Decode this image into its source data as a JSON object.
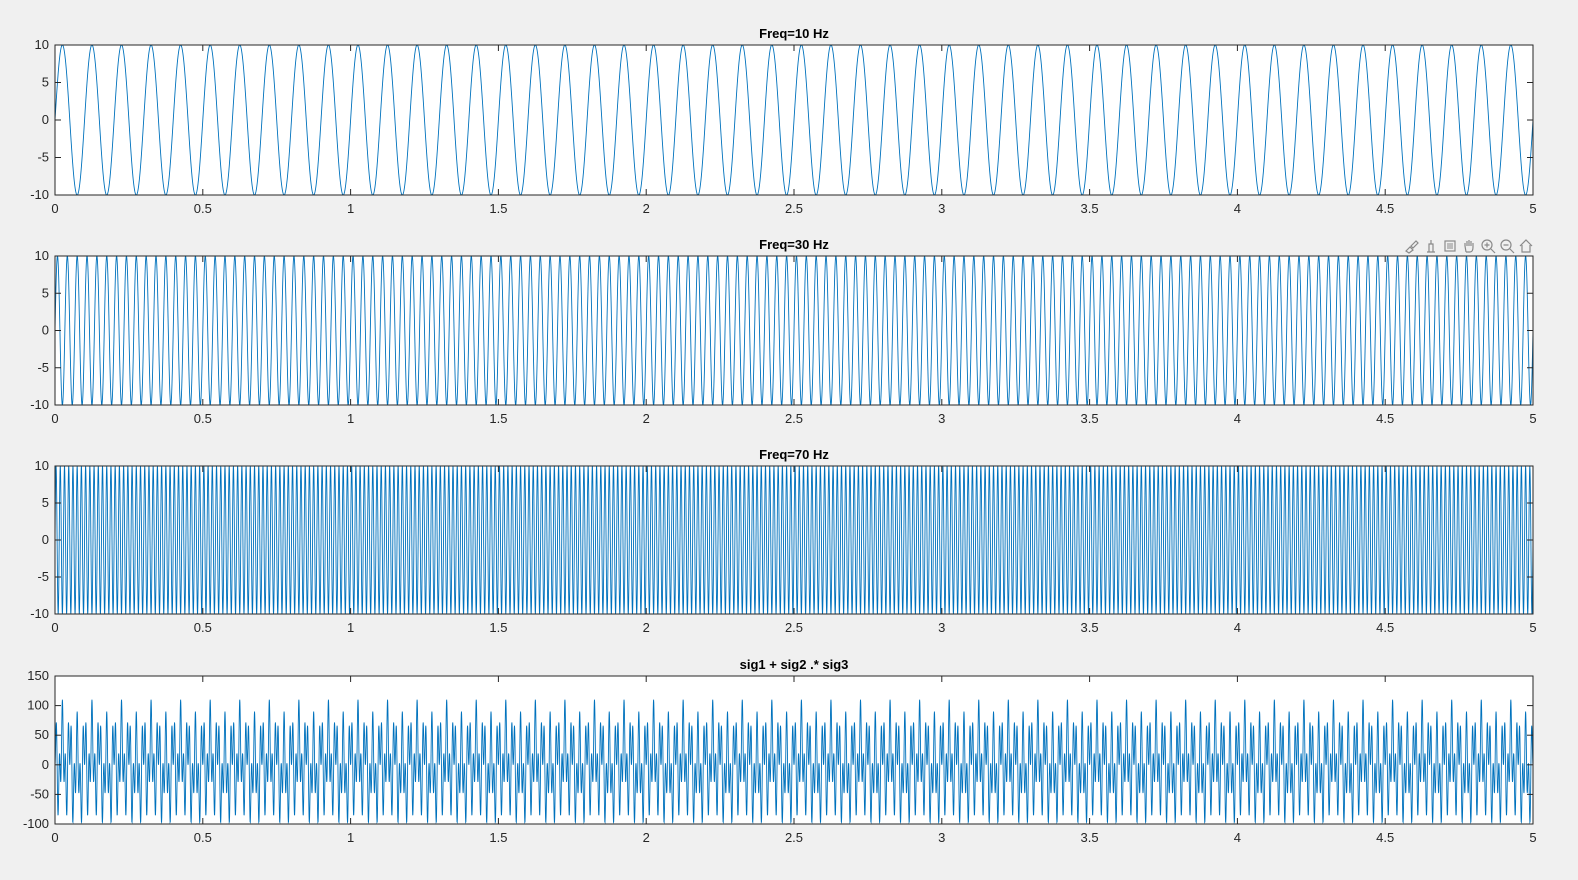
{
  "window": {
    "background": "#f0f0f0"
  },
  "style": {
    "line_color": "#0072bd",
    "axes_color": "#262626",
    "plot_bg": "#ffffff"
  },
  "axes_toolbar": [
    {
      "name": "brush-icon"
    },
    {
      "name": "datatip-icon"
    },
    {
      "name": "rotate-icon"
    },
    {
      "name": "pan-icon"
    },
    {
      "name": "zoom-in-icon"
    },
    {
      "name": "zoom-out-icon"
    },
    {
      "name": "home-icon"
    }
  ],
  "chart_data": [
    {
      "type": "line",
      "title": "Freq=10 Hz",
      "xlabel": "",
      "ylabel": "",
      "xlim": [
        0,
        5
      ],
      "ylim": [
        -10,
        10
      ],
      "xticks": [
        0,
        0.5,
        1,
        1.5,
        2,
        2.5,
        3,
        3.5,
        4,
        4.5,
        5
      ],
      "yticks": [
        -10,
        -5,
        0,
        5,
        10
      ],
      "xtick_labels": [
        "0",
        "0.5",
        "1",
        "1.5",
        "2",
        "2.5",
        "3",
        "3.5",
        "4",
        "4.5",
        "5"
      ],
      "ytick_labels": [
        "-10",
        "-5",
        "0",
        "5",
        "10"
      ],
      "grid": false,
      "series": [
        {
          "function": "10*sin(2*pi*10*t)",
          "amplitude": 10,
          "frequency_hz": 10
        }
      ]
    },
    {
      "type": "line",
      "title": "Freq=30 Hz",
      "xlabel": "",
      "ylabel": "",
      "xlim": [
        0,
        5
      ],
      "ylim": [
        -10,
        10
      ],
      "xticks": [
        0,
        0.5,
        1,
        1.5,
        2,
        2.5,
        3,
        3.5,
        4,
        4.5,
        5
      ],
      "yticks": [
        -10,
        -5,
        0,
        5,
        10
      ],
      "xtick_labels": [
        "0",
        "0.5",
        "1",
        "1.5",
        "2",
        "2.5",
        "3",
        "3.5",
        "4",
        "4.5",
        "5"
      ],
      "ytick_labels": [
        "-10",
        "-5",
        "0",
        "5",
        "10"
      ],
      "grid": false,
      "series": [
        {
          "function": "10*sin(2*pi*30*t)",
          "amplitude": 10,
          "frequency_hz": 30
        }
      ]
    },
    {
      "type": "line",
      "title": "Freq=70 Hz",
      "xlabel": "",
      "ylabel": "",
      "xlim": [
        0,
        5
      ],
      "ylim": [
        -10,
        10
      ],
      "xticks": [
        0,
        0.5,
        1,
        1.5,
        2,
        2.5,
        3,
        3.5,
        4,
        4.5,
        5
      ],
      "yticks": [
        -10,
        -5,
        0,
        5,
        10
      ],
      "xtick_labels": [
        "0",
        "0.5",
        "1",
        "1.5",
        "2",
        "2.5",
        "3",
        "3.5",
        "4",
        "4.5",
        "5"
      ],
      "ytick_labels": [
        "-10",
        "-5",
        "0",
        "5",
        "10"
      ],
      "grid": false,
      "series": [
        {
          "function": "10*sin(2*pi*70*t)",
          "amplitude": 10,
          "frequency_hz": 70
        }
      ]
    },
    {
      "type": "line",
      "title": "sig1 + sig2 .* sig3",
      "xlabel": "",
      "ylabel": "",
      "xlim": [
        0,
        5
      ],
      "ylim": [
        -100,
        150
      ],
      "xticks": [
        0,
        0.5,
        1,
        1.5,
        2,
        2.5,
        3,
        3.5,
        4,
        4.5,
        5
      ],
      "yticks": [
        -100,
        -50,
        0,
        50,
        100,
        150
      ],
      "xtick_labels": [
        "0",
        "0.5",
        "1",
        "1.5",
        "2",
        "2.5",
        "3",
        "3.5",
        "4",
        "4.5",
        "5"
      ],
      "ytick_labels": [
        "-100",
        "-50",
        "0",
        "50",
        "100",
        "150"
      ],
      "grid": false,
      "series": [
        {
          "function": "sig1 + sig2 .* sig3",
          "components_hz": [
            10,
            30,
            70
          ],
          "amplitude": 10
        }
      ]
    }
  ]
}
